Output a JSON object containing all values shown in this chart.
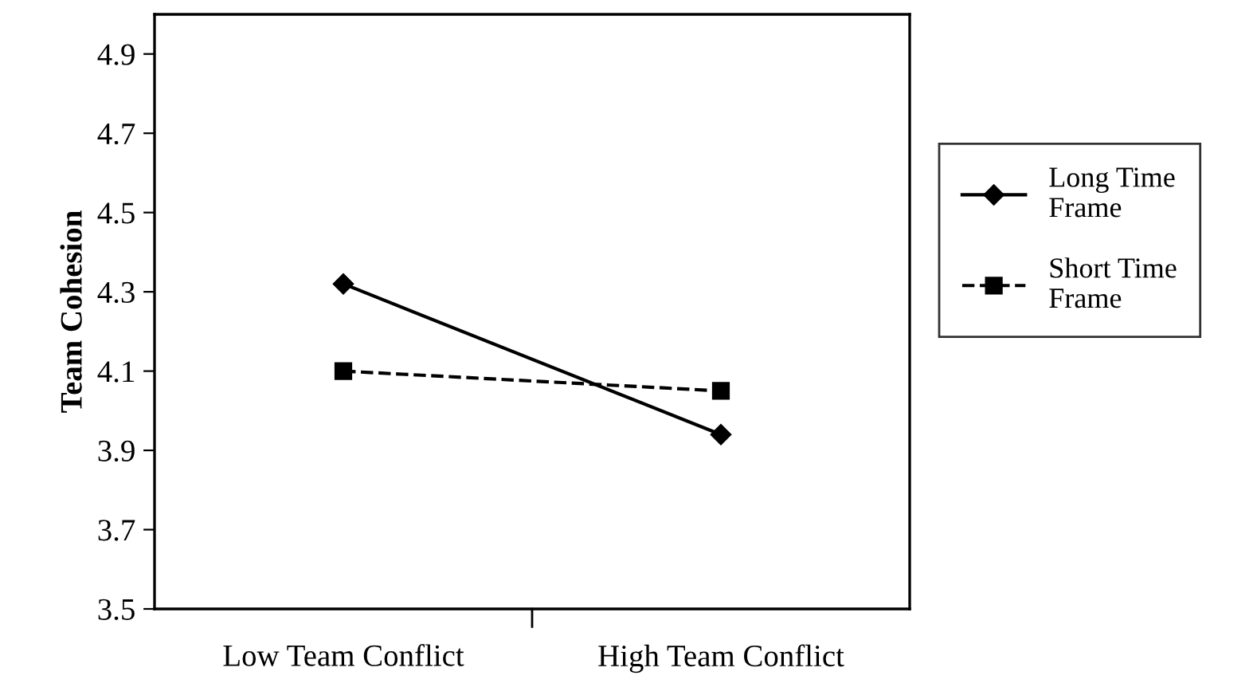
{
  "chart_data": {
    "type": "line",
    "ylabel": "Team Cohesion",
    "categories": [
      "Low Team Conflict",
      "High Team Conflict"
    ],
    "series": [
      {
        "name": "Long Time Frame",
        "color": "#000000",
        "values": [
          4.32,
          3.94
        ],
        "marker": "diamond",
        "line_style": "solid"
      },
      {
        "name": "Short Time Frame",
        "color": "#000000",
        "values": [
          4.1,
          4.05
        ],
        "marker": "square",
        "line_style": "dashed"
      }
    ],
    "ylim": [
      3.5,
      5.0
    ],
    "yticks": [
      3.5,
      3.7,
      3.9,
      4.1,
      4.3,
      4.5,
      4.7,
      4.9
    ],
    "grid": false,
    "legend": "right"
  }
}
